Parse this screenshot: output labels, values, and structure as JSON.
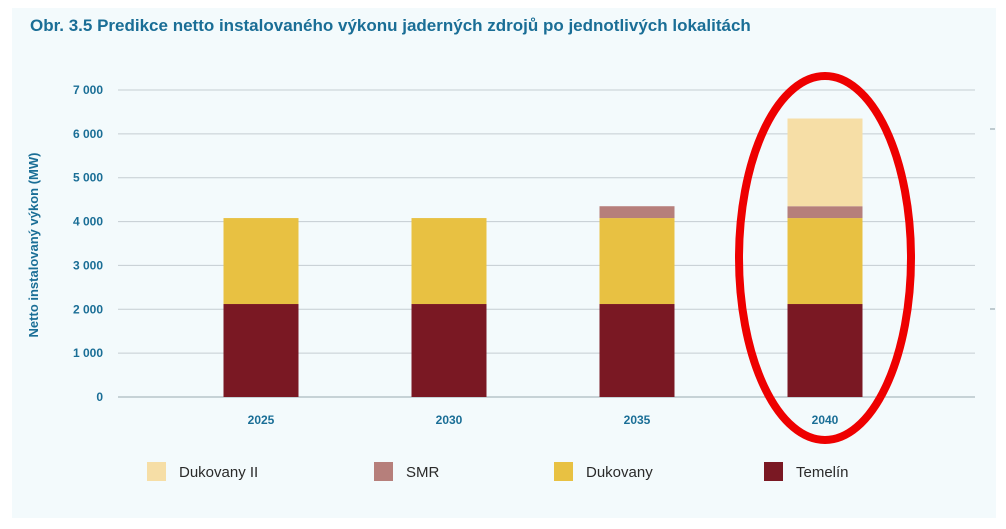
{
  "chart_data": {
    "type": "bar",
    "stacked": true,
    "title": "Obr. 3.5 Predikce netto instalovaného výkonu jaderných zdrojů po jednotlivých lokalitách",
    "xlabel": "",
    "ylabel": "Netto instalovaný výkon (MW)",
    "ylim": [
      0,
      7000
    ],
    "yticks": [
      "0",
      "1 000",
      "2 000",
      "3 000",
      "4 000",
      "5 000",
      "6 000",
      "7 000"
    ],
    "categories": [
      "2025",
      "2030",
      "2035",
      "2040"
    ],
    "series": [
      {
        "name": "Temelín",
        "color": "#7a1823",
        "values": [
          2120,
          2120,
          2120,
          2120
        ]
      },
      {
        "name": "Dukovany",
        "color": "#e8c142",
        "values": [
          1960,
          1960,
          1960,
          1960
        ]
      },
      {
        "name": "SMR",
        "color": "#b67f7b",
        "values": [
          0,
          0,
          270,
          270
        ]
      },
      {
        "name": "Dukovany II",
        "color": "#f6dea6",
        "values": [
          0,
          0,
          0,
          2000
        ]
      }
    ],
    "legend_order": [
      "Dukovany II",
      "SMR",
      "Dukovany",
      "Temelín"
    ],
    "legend_position": "bottom",
    "grid": true,
    "highlight": {
      "category": "2040",
      "shape": "ellipse",
      "color": "#ee0000"
    }
  }
}
